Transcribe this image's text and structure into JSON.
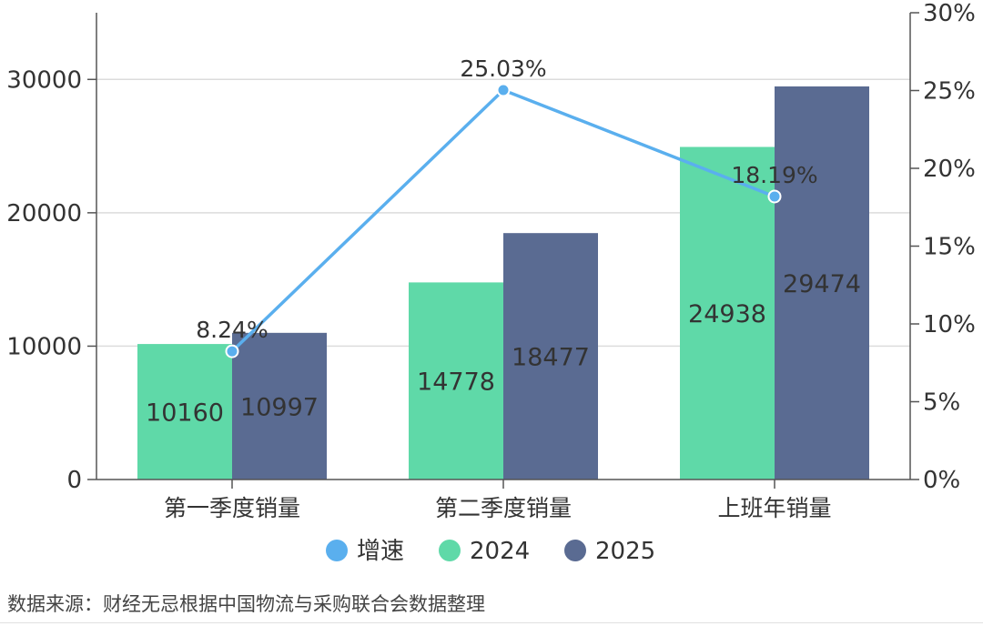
{
  "chart_data": {
    "type": "bar+line",
    "categories": [
      "第一季度销量",
      "第二季度销量",
      "上班年销量"
    ],
    "series": [
      {
        "name": "2024",
        "type": "bar",
        "axis": "left",
        "color": "#5fd9a8",
        "values": [
          10160,
          14778,
          24938
        ]
      },
      {
        "name": "2025",
        "type": "bar",
        "axis": "left",
        "color": "#5a6b92",
        "values": [
          10997,
          18477,
          29474
        ]
      },
      {
        "name": "增速",
        "type": "line",
        "axis": "right",
        "color": "#5aafee",
        "values": [
          8.24,
          25.03,
          18.19
        ],
        "labels": [
          "8.24%",
          "25.03%",
          "18.19%"
        ]
      }
    ],
    "y_left": {
      "ticks": [
        "0",
        "10000",
        "20000",
        "30000"
      ],
      "tick_values": [
        0,
        10000,
        20000,
        30000
      ],
      "range": [
        0,
        35000
      ]
    },
    "y_right": {
      "ticks": [
        "0%",
        "5%",
        "10%",
        "15%",
        "20%",
        "25%",
        "30%"
      ],
      "tick_values": [
        0,
        5,
        10,
        15,
        20,
        25,
        30
      ],
      "range": [
        0,
        30
      ]
    },
    "legend": {
      "position": "bottom",
      "items": [
        "增速",
        "2024",
        "2025"
      ]
    },
    "grid": true
  },
  "source_note": "数据来源：财经无忌根据中国物流与采购联合会数据整理"
}
